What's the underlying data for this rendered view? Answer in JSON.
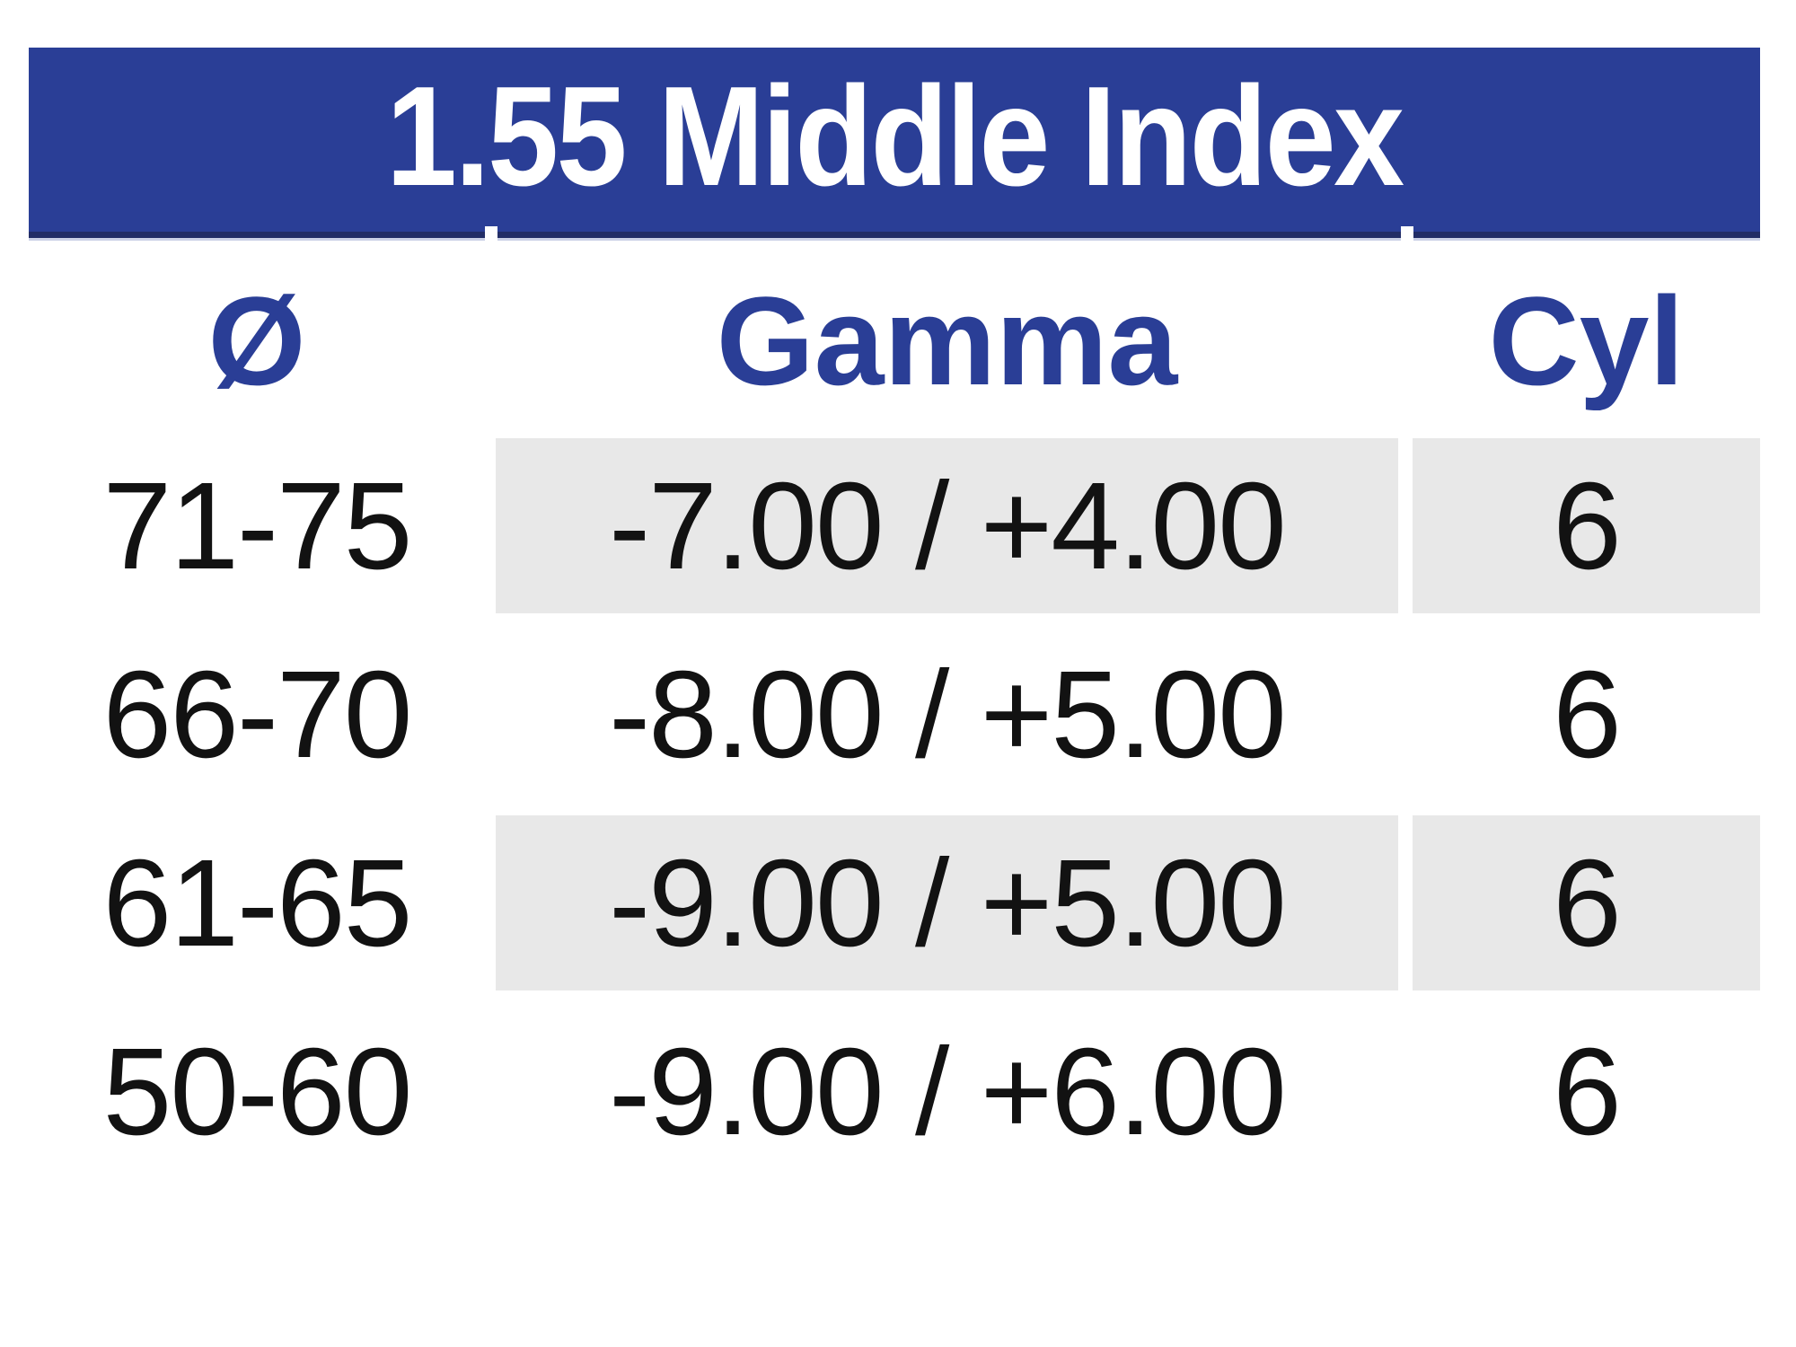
{
  "title": "1.55 Middle Index",
  "table": {
    "columns": [
      {
        "label": "Ø"
      },
      {
        "label": "Gamma"
      },
      {
        "label": "Cyl"
      }
    ],
    "rows": [
      {
        "diameter": "71-75",
        "gamma": "-7.00 / +4.00",
        "cyl": "6"
      },
      {
        "diameter": "66-70",
        "gamma": "-8.00 / +5.00",
        "cyl": "6"
      },
      {
        "diameter": "61-65",
        "gamma": "-9.00 / +5.00",
        "cyl": "6"
      },
      {
        "diameter": "50-60",
        "gamma": "-9.00 / +6.00",
        "cyl": "6"
      }
    ]
  },
  "colors": {
    "banner_blue": "#2a3e96",
    "banner_border_navy": "#222d66",
    "header_text_blue": "#2a3e96",
    "row_shade_gray": "#e8e8e8",
    "data_text_black": "#121212",
    "background_white": "#ffffff"
  }
}
